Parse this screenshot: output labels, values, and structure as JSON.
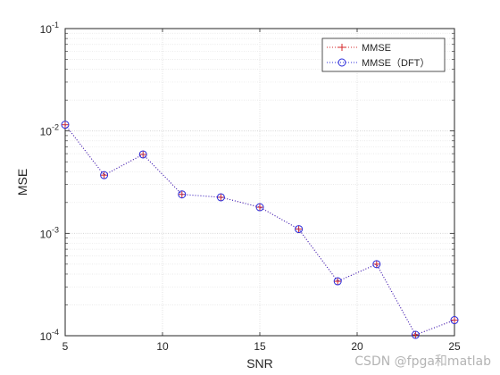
{
  "chart_data": {
    "type": "line",
    "title": "",
    "xlabel": "SNR",
    "ylabel": "MSE",
    "xlim": [
      5,
      25
    ],
    "ylim": [
      0.0001,
      0.1
    ],
    "yscale": "log",
    "grid": "on (major and minor)",
    "legend_position": "top-right",
    "x_ticks": [
      "5",
      "10",
      "15",
      "20",
      "25"
    ],
    "y_ticks": [
      {
        "base": "10",
        "exp": "-4",
        "value": 0.0001
      },
      {
        "base": "10",
        "exp": "-3",
        "value": 0.001
      },
      {
        "base": "10",
        "exp": "-2",
        "value": 0.01
      },
      {
        "base": "10",
        "exp": "-1",
        "value": 0.1
      }
    ],
    "x": [
      5,
      7,
      9,
      11,
      13,
      15,
      17,
      19,
      21,
      23,
      25
    ],
    "series": [
      {
        "name": "MMSE",
        "marker": "plus",
        "line_style": "dotted",
        "color": "#d62728",
        "values": [
          0.0115,
          0.0037,
          0.0059,
          0.0024,
          0.00225,
          0.0018,
          0.0011,
          0.00034,
          0.0005,
          0.000102,
          0.000142
        ]
      },
      {
        "name": "MMSE（DFT）",
        "marker": "circle",
        "line_style": "dotted",
        "color": "#2b2bd9",
        "values": [
          0.0115,
          0.0037,
          0.0059,
          0.0024,
          0.00225,
          0.0018,
          0.0011,
          0.00034,
          0.0005,
          0.000102,
          0.000142
        ]
      }
    ]
  },
  "watermark": "CSDN @fpga和matlab"
}
